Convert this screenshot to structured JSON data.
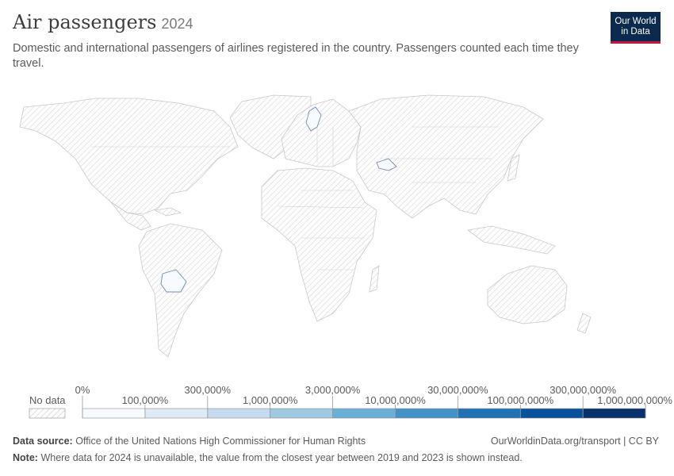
{
  "header": {
    "title": "Air passengers",
    "year": "2024",
    "subtitle": "Domestic and international passengers of airlines registered in the country. Passengers counted each time they travel."
  },
  "logo": {
    "line1": "Our World",
    "line2": "in Data"
  },
  "legend": {
    "no_data_label": "No data",
    "upper_ticks": [
      "0%",
      "300,000%",
      "3,000,000%",
      "30,000,000%",
      "300,000,000%"
    ],
    "lower_ticks": [
      "100,000%",
      "1,000,000%",
      "10,000,000%",
      "100,000,000%",
      "1,000,000,000%"
    ],
    "bin_colors": [
      "#f7fbff",
      "#deebf7",
      "#c6dbef",
      "#9ecae1",
      "#6baed6",
      "#4292c6",
      "#2171b5",
      "#08519c",
      "#08306b"
    ]
  },
  "colors": {
    "no_data_hatch": "#d6d6d6",
    "land_outline": "#c8c8c8",
    "highlighted_country_fill": "#f7fbff",
    "highlighted_country_stroke": "#6d8bb3",
    "logo_background": "#0c2a4e",
    "logo_accent": "#c5163d"
  },
  "footer": {
    "source_label": "Data source:",
    "source_text": "Office of the United Nations High Commissioner for Human Rights",
    "note_label": "Note:",
    "note_text": "Where data for 2024 is unavailable, the value from the closest year between 2019 and 2023 is shown instead.",
    "link": "OurWorldinData.org/transport | CC BY"
  }
}
